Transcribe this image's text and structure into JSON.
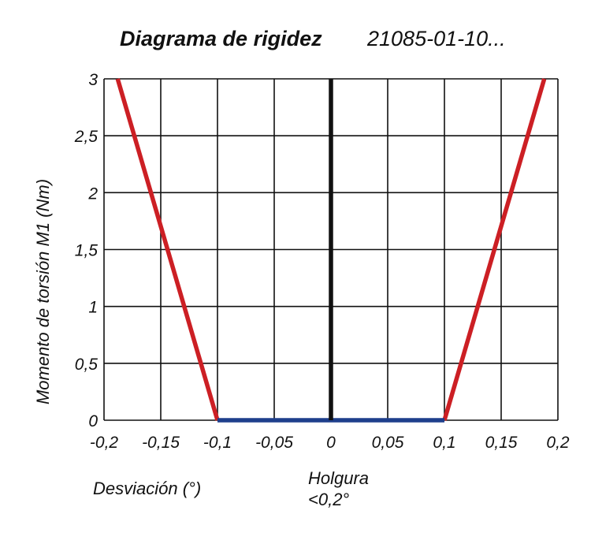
{
  "chart_data": {
    "type": "line",
    "title": "Diagrama de rigidez",
    "subtitle": "21085-01-10...",
    "xlabel": "Desviación (°)",
    "ylabel": "Momento de torsión M1 (Nm)",
    "annotation": [
      "Holgura",
      "<0,2°"
    ],
    "xlim": [
      -0.2,
      0.2
    ],
    "ylim": [
      0,
      3
    ],
    "grid": true,
    "x_ticks": [
      -0.2,
      -0.15,
      -0.1,
      -0.05,
      0,
      0.05,
      0.1,
      0.15,
      0.2
    ],
    "x_tick_labels": [
      "-0,2",
      "-0,15",
      "-0,1",
      "-0,05",
      "0",
      "0,05",
      "0,1",
      "0,15",
      "0,2"
    ],
    "y_ticks": [
      0,
      0.5,
      1,
      1.5,
      2,
      2.5,
      3
    ],
    "y_tick_labels": [
      "0",
      "0,5",
      "1",
      "1,5",
      "2",
      "2,5",
      "3"
    ],
    "series": [
      {
        "color": "#cc1f24",
        "x": [
          -0.1,
          -0.188
        ],
        "y": [
          0,
          3
        ]
      },
      {
        "color": "#cc1f24",
        "x": [
          0.1,
          0.188
        ],
        "y": [
          0,
          3
        ]
      },
      {
        "color": "#1e3f8c",
        "x": [
          -0.1,
          0.1
        ],
        "y": [
          0,
          0
        ]
      },
      {
        "color": "#111111",
        "x": [
          0,
          0
        ],
        "y": [
          0,
          3
        ]
      }
    ]
  }
}
